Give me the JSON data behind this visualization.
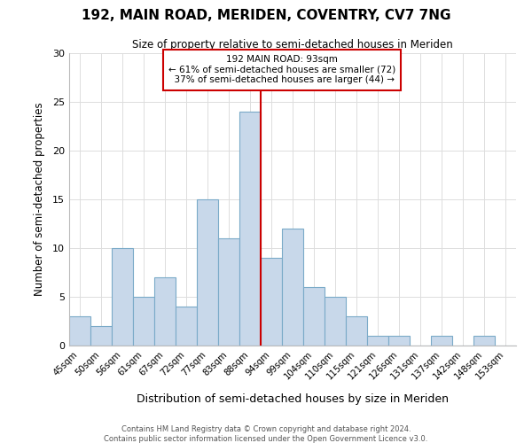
{
  "title": "192, MAIN ROAD, MERIDEN, COVENTRY, CV7 7NG",
  "subtitle": "Size of property relative to semi-detached houses in Meriden",
  "xlabel": "Distribution of semi-detached houses by size in Meriden",
  "ylabel": "Number of semi-detached properties",
  "bins": [
    "45sqm",
    "50sqm",
    "56sqm",
    "61sqm",
    "67sqm",
    "72sqm",
    "77sqm",
    "83sqm",
    "88sqm",
    "94sqm",
    "99sqm",
    "104sqm",
    "110sqm",
    "115sqm",
    "121sqm",
    "126sqm",
    "131sqm",
    "137sqm",
    "142sqm",
    "148sqm",
    "153sqm"
  ],
  "values": [
    3,
    2,
    10,
    5,
    7,
    4,
    15,
    11,
    24,
    9,
    12,
    6,
    5,
    3,
    1,
    1,
    0,
    1,
    0,
    1,
    0
  ],
  "highlight_bin_index": 8,
  "highlight_label": "192 MAIN ROAD: 93sqm",
  "pct_smaller": 61,
  "n_smaller": 72,
  "pct_larger": 37,
  "n_larger": 44,
  "bar_color": "#c8d8ea",
  "bar_edge_color": "#7aaac8",
  "highlight_line_color": "#cc0000",
  "annotation_box_edge": "#cc0000",
  "ylim": [
    0,
    30
  ],
  "yticks": [
    0,
    5,
    10,
    15,
    20,
    25,
    30
  ],
  "footer_line1": "Contains HM Land Registry data © Crown copyright and database right 2024.",
  "footer_line2": "Contains public sector information licensed under the Open Government Licence v3.0."
}
